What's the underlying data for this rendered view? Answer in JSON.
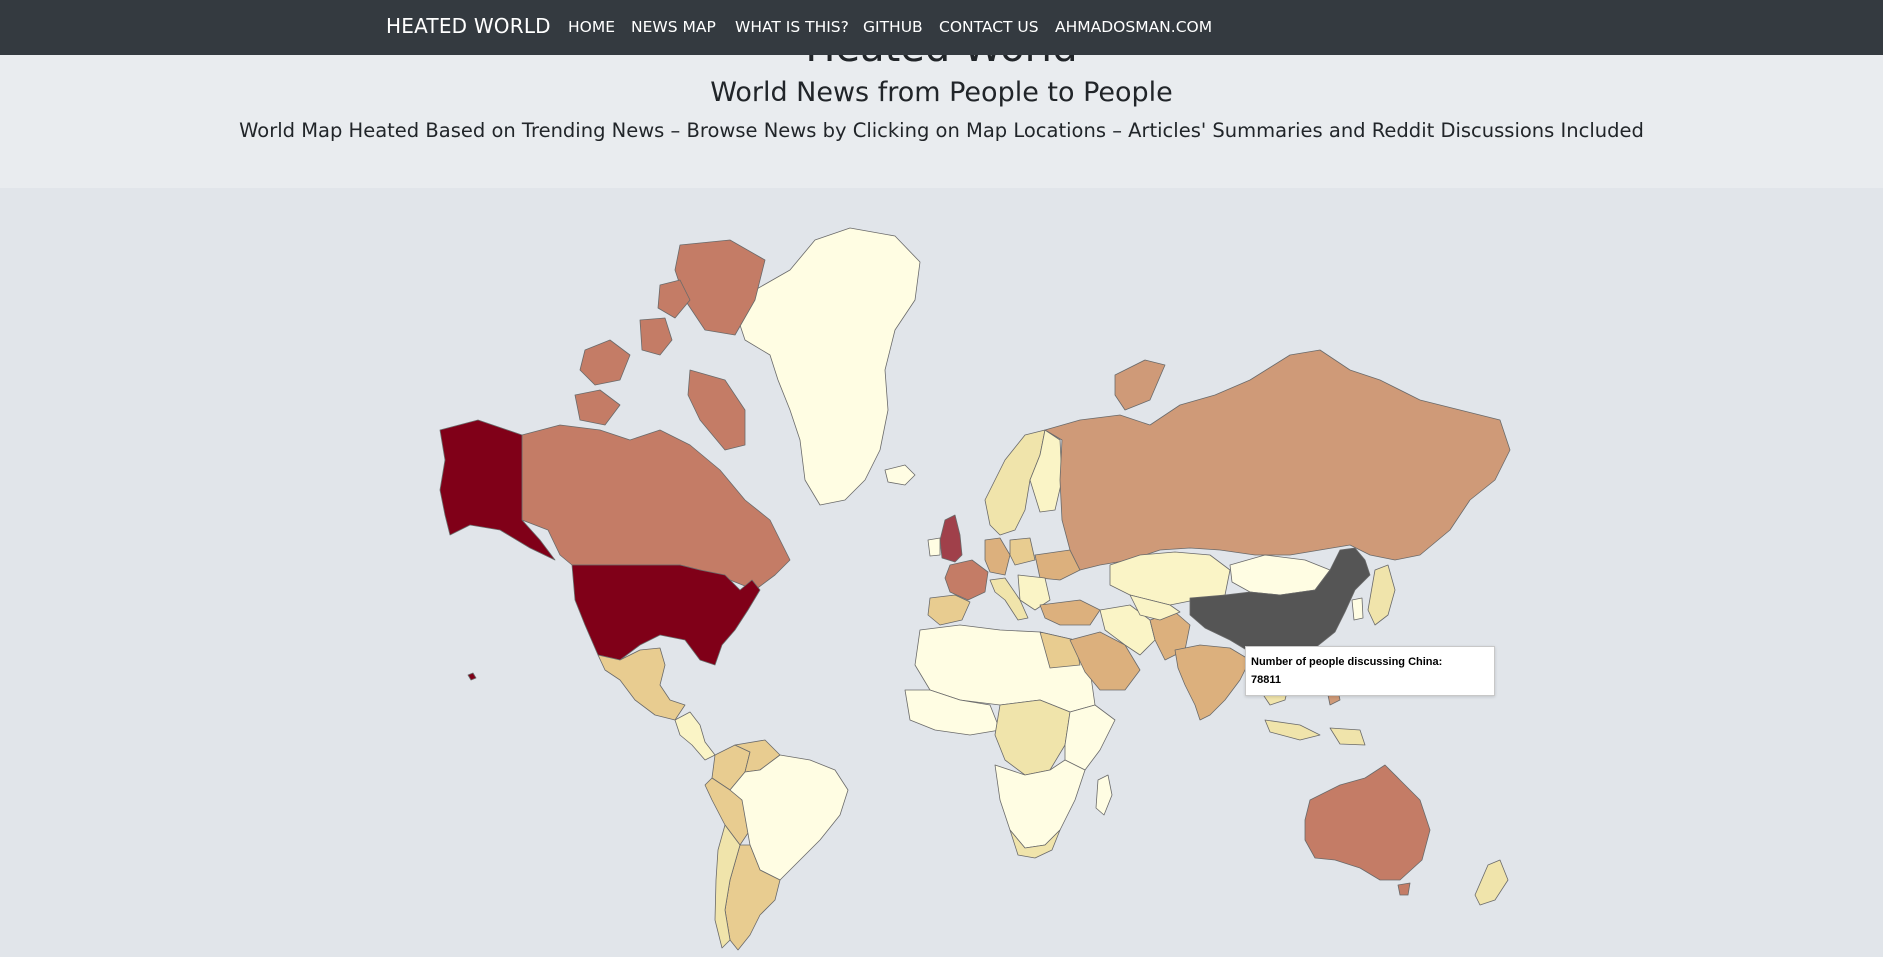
{
  "navbar": {
    "brand": "HEATED WORLD",
    "items": [
      {
        "label": "HOME"
      },
      {
        "label": "NEWS MAP"
      },
      {
        "label": "WHAT IS THIS?"
      },
      {
        "label": "GITHUB"
      },
      {
        "label": "CONTACT US"
      },
      {
        "label": "AHMADOSMAN.COM"
      }
    ]
  },
  "hero": {
    "title": "Heated World",
    "subtitle": "World News from People to People",
    "lead": "World Map Heated Based on Trending News – Browse News by Clicking on Map Locations – Articles' Summaries and Reddit Discussions Included"
  },
  "map": {
    "ocean_color": "#e1e5ea",
    "heat_scale": [
      "#fffde3",
      "#faf4c6",
      "#f0e4ab",
      "#e8cc90",
      "#dcb07d",
      "#cf9a78",
      "#c47c66",
      "#a0404a",
      "#800018"
    ],
    "hover_color": "#555555",
    "countries": [
      {
        "name": "United States",
        "heat": "#800018"
      },
      {
        "name": "United Kingdom",
        "heat": "#a0404a"
      },
      {
        "name": "Canada",
        "heat": "#c47c66"
      },
      {
        "name": "Russia",
        "heat": "#cf9a78"
      },
      {
        "name": "Australia",
        "heat": "#c47c66"
      },
      {
        "name": "France",
        "heat": "#c47c66"
      },
      {
        "name": "China",
        "heat": "#555555"
      },
      {
        "name": "Greenland",
        "heat": "#fffde3"
      },
      {
        "name": "Mexico",
        "heat": "#e8cc90"
      },
      {
        "name": "India",
        "heat": "#dcb07d"
      },
      {
        "name": "Brazil",
        "heat": "#fffde3"
      },
      {
        "name": "Argentina",
        "heat": "#e8cc90"
      }
    ]
  },
  "tooltip": {
    "line1": "Number of people discussing China:",
    "line2": "78811"
  }
}
